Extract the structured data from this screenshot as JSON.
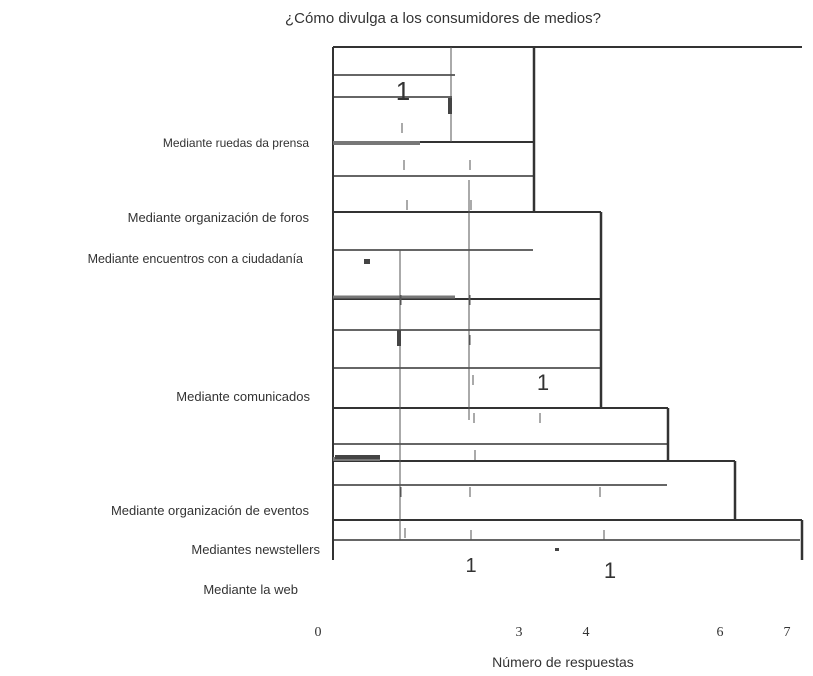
{
  "chart_data": {
    "type": "bar",
    "title": "¿Cómo divulga a los consumidores de medios?",
    "xlabel": "Número de respuestas",
    "ylabel": "",
    "xlim": [
      0,
      7
    ],
    "x_ticks": [
      "0",
      "3",
      "4",
      "6",
      "7"
    ],
    "categories": [
      "Mediante ruedas da prensa",
      "Mediante organización de foros",
      "Mediante encuentros con a ciudadanía",
      "Mediante comunicados",
      "Mediante organización de eventos",
      "Mediantes newstellers",
      "Mediante la web"
    ],
    "values": [
      3,
      3,
      4,
      4,
      5,
      6,
      7
    ],
    "stray_marks": [
      "1",
      "1",
      "1",
      "1",
      "1",
      "1"
    ],
    "colors": {
      "bar_line": "#333333",
      "text": "#333333",
      "background": "#ffffff"
    }
  }
}
